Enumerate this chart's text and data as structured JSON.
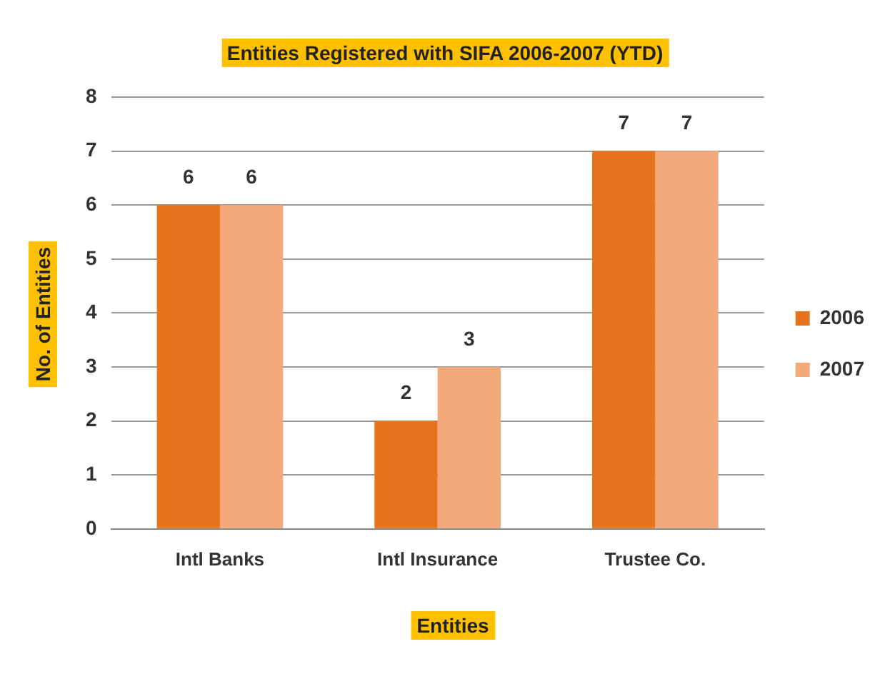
{
  "chart_data": {
    "type": "bar",
    "title": "Entities Registered with SIFA 2006-2007 (YTD)",
    "xlabel": "Entities",
    "ylabel": "No. of Entities",
    "categories": [
      "Intl Banks",
      "Intl Insurance",
      "Trustee Co."
    ],
    "series": [
      {
        "name": "2006",
        "color": "#e8731e",
        "values": [
          6,
          2,
          7
        ]
      },
      {
        "name": "2007",
        "color": "#f4a97a",
        "values": [
          6,
          3,
          7
        ]
      }
    ],
    "ylim": [
      0,
      8
    ],
    "yticks": [
      0,
      1,
      2,
      3,
      4,
      5,
      6,
      7,
      8
    ],
    "grid": "y",
    "legend": "right",
    "data_labels": true
  }
}
